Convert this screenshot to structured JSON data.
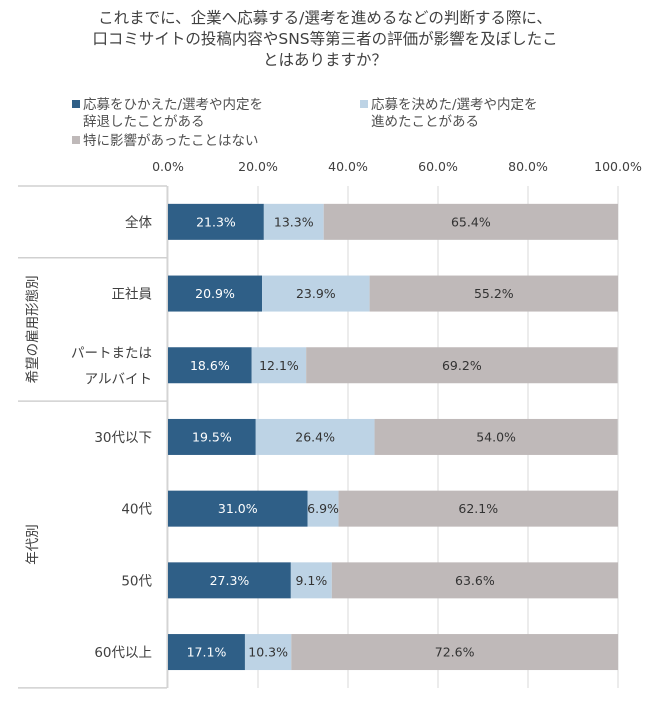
{
  "chart_data": {
    "type": "bar",
    "orientation": "horizontal",
    "stacked": true,
    "title": "これまでに、企業へ応募する/選考を進めるなどの判断する際に、口コミサイトの投稿内容やSNS等第三者の評価が影響を及ぼしたことはありますか？",
    "title_lines": [
      "これまでに、企業へ応募する/選考を進めるなどの判断する際に、",
      "口コミサイトの投稿内容やSNS等第三者の評価が影響を及ぼしたこ",
      "とはありますか？"
    ],
    "xlim": [
      0,
      100
    ],
    "x_ticks": [
      "0.0%",
      "20.0%",
      "40.0%",
      "60.0%",
      "80.0%",
      "100.0%"
    ],
    "grid": true,
    "legend_position": "top",
    "categories": [
      "全体",
      "正社員",
      "パートまたはアルバイト",
      "30代以下",
      "40代",
      "50代",
      "60代以上"
    ],
    "category_lines": [
      [
        "全体"
      ],
      [
        "正社員"
      ],
      [
        "パートまたは",
        "アルバイト"
      ],
      [
        "30代以下"
      ],
      [
        "40代"
      ],
      [
        "50代"
      ],
      [
        "60代以上"
      ]
    ],
    "groups": [
      {
        "label": "",
        "categories": [
          "全体"
        ]
      },
      {
        "label": "希望の雇用形態別",
        "categories": [
          "正社員",
          "パートまたはアルバイト"
        ]
      },
      {
        "label": "年代別",
        "categories": [
          "30代以下",
          "40代",
          "50代",
          "60代以上"
        ]
      }
    ],
    "series": [
      {
        "name": "応募をひかえた/選考や内定を辞退したことがある",
        "legend_lines": [
          "応募をひかえた/選考や内定を",
          "辞退したことがある"
        ],
        "color": "#2f5f87",
        "label_color": "#ffffff",
        "values": [
          21.3,
          20.9,
          18.6,
          19.5,
          31.0,
          27.3,
          17.1
        ]
      },
      {
        "name": "応募を決めた/選考や内定を進めたことがある",
        "legend_lines": [
          "応募を決めた/選考や内定を",
          "進めたことがある"
        ],
        "color": "#bdd3e5",
        "label_color": "#333333",
        "values": [
          13.3,
          23.9,
          12.1,
          26.4,
          6.9,
          9.1,
          10.3
        ]
      },
      {
        "name": "特に影響があったことはない",
        "legend_lines": [
          "特に影響があったことはない"
        ],
        "color": "#bfb9b9",
        "label_color": "#333333",
        "values": [
          65.4,
          55.2,
          69.2,
          54.0,
          62.1,
          63.6,
          72.6
        ]
      }
    ]
  }
}
